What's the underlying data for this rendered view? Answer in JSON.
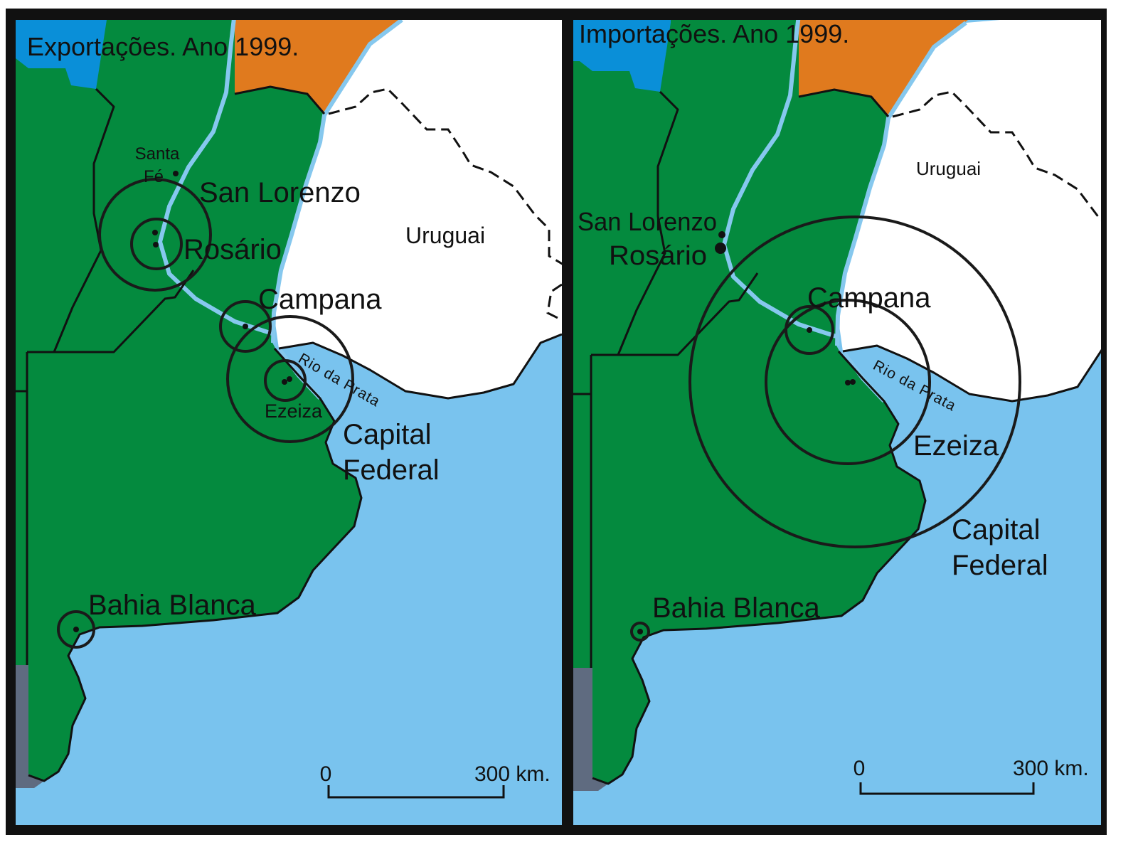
{
  "colors": {
    "land_argentina": "#048a3e",
    "sea_river": "#79c3ee",
    "river_line": "#86c8ee",
    "uruguay": "#ffffff",
    "province_blue": "#0a8fd8",
    "province_orange": "#e07a1e",
    "chile_gray": "#5f6b80",
    "frame": "#111111"
  },
  "panels": [
    {
      "title": "Exportações. Ano 1999.",
      "labels": {
        "santa_fe": [
          "Santa",
          "Fé"
        ],
        "san_lorenzo": "San Lorenzo",
        "rosario": "Rosário",
        "uruguai": "Uruguai",
        "campana": "Campana",
        "ezeiza": "Ezeiza",
        "rio_da_prata": "Rio da Prata",
        "capital_federal": [
          "Capital",
          "Federal"
        ],
        "bahia_blanca": "Bahia Blanca"
      },
      "scale": {
        "start": "0",
        "end": "300 km."
      }
    },
    {
      "title": "Importações. Ano 1999.",
      "labels": {
        "san_lorenzo": "San Lorenzo",
        "rosario": "Rosário",
        "uruguai": "Uruguai",
        "campana": "Campana",
        "ezeiza": "Ezeiza",
        "rio_da_prata": "Rio da Prata",
        "capital_federal": [
          "Capital",
          "Federal"
        ],
        "bahia_blanca": "Bahia Blanca"
      },
      "scale": {
        "start": "0",
        "end": "300 km."
      }
    }
  ]
}
